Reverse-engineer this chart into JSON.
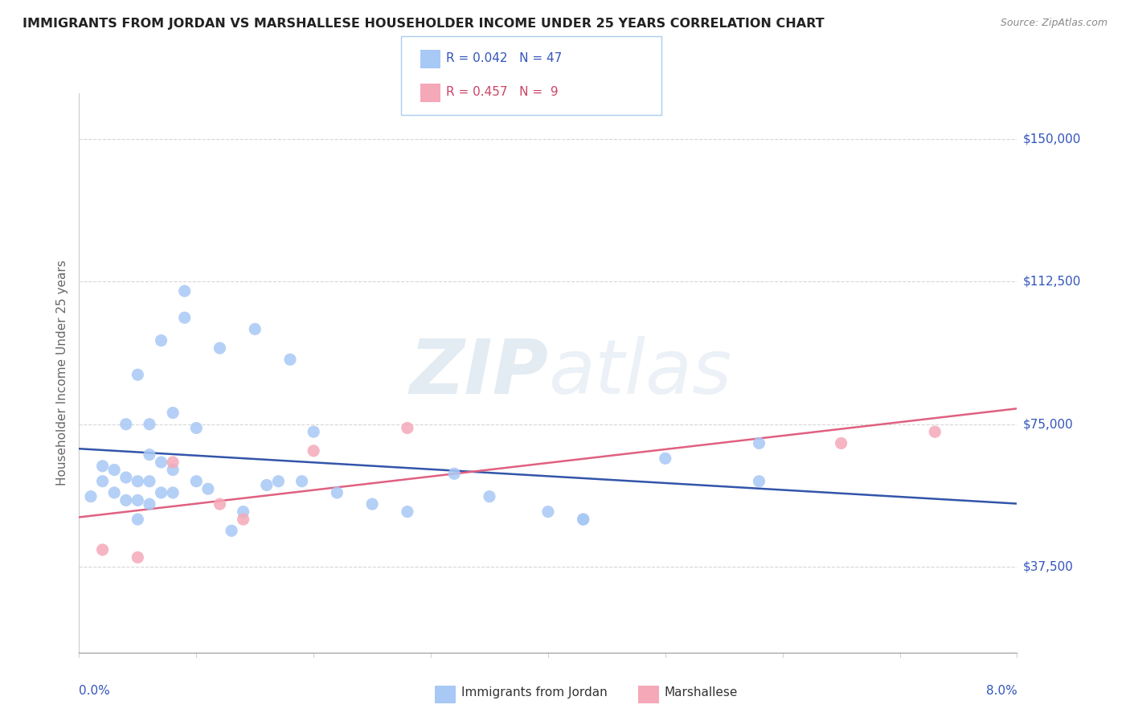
{
  "title": "IMMIGRANTS FROM JORDAN VS MARSHALLESE HOUSEHOLDER INCOME UNDER 25 YEARS CORRELATION CHART",
  "source": "Source: ZipAtlas.com",
  "ylabel": "Householder Income Under 25 years",
  "color_jordan": "#a8c8f5",
  "color_marshallese": "#f5a8b8",
  "color_jordan_line": "#3355aa",
  "color_marshallese_line": "#e06080",
  "color_text_blue": "#3355bb",
  "color_text_pink": "#cc4466",
  "watermark_zip": "ZIP",
  "watermark_atlas": "atlas",
  "xmin": 0.0,
  "xmax": 0.08,
  "ymin": 15000,
  "ymax": 162000,
  "ytick_vals": [
    37500,
    75000,
    112500,
    150000
  ],
  "ytick_labels": [
    "$37,500",
    "$75,000",
    "$112,500",
    "$150,000"
  ],
  "jordan_x": [
    0.001,
    0.002,
    0.002,
    0.003,
    0.003,
    0.004,
    0.004,
    0.004,
    0.005,
    0.005,
    0.005,
    0.005,
    0.006,
    0.006,
    0.006,
    0.006,
    0.007,
    0.007,
    0.007,
    0.008,
    0.008,
    0.008,
    0.009,
    0.009,
    0.01,
    0.01,
    0.011,
    0.012,
    0.013,
    0.014,
    0.015,
    0.016,
    0.017,
    0.018,
    0.019,
    0.02,
    0.022,
    0.025,
    0.028,
    0.032,
    0.035,
    0.04,
    0.043,
    0.043,
    0.05,
    0.058,
    0.058
  ],
  "jordan_y": [
    56000,
    60000,
    64000,
    57000,
    63000,
    55000,
    61000,
    75000,
    50000,
    55000,
    60000,
    88000,
    54000,
    60000,
    67000,
    75000,
    57000,
    65000,
    97000,
    57000,
    63000,
    78000,
    103000,
    110000,
    60000,
    74000,
    58000,
    95000,
    47000,
    52000,
    100000,
    59000,
    60000,
    92000,
    60000,
    73000,
    57000,
    54000,
    52000,
    62000,
    56000,
    52000,
    50000,
    50000,
    66000,
    70000,
    60000
  ],
  "marshallese_x": [
    0.002,
    0.005,
    0.008,
    0.012,
    0.014,
    0.02,
    0.028,
    0.065,
    0.073
  ],
  "marshallese_y": [
    42000,
    40000,
    65000,
    54000,
    50000,
    68000,
    74000,
    70000,
    73000
  ]
}
